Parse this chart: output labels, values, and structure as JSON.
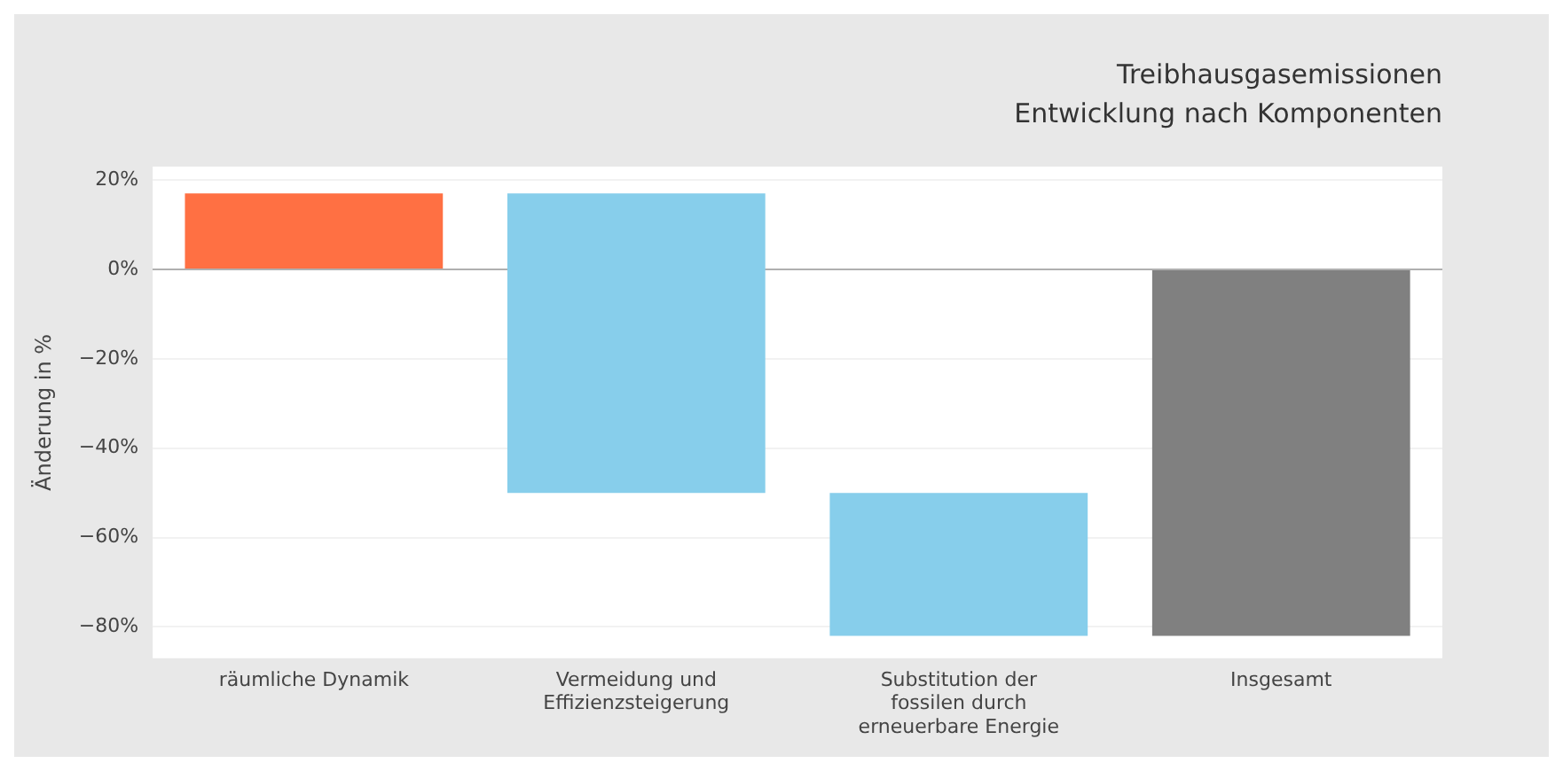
{
  "chart_data": {
    "type": "bar",
    "title": "Treibhausgasemissionen",
    "subtitle": "Entwicklung nach Komponenten",
    "ylabel": "Änderung in %",
    "categories": [
      "räumliche Dynamik",
      "Vermeidung und Effizienzsteigerung",
      "Substitution der fossilen durch erneuerbare Energie",
      "Insgesamt"
    ],
    "values": [
      17,
      -67,
      -32,
      -82
    ],
    "base": [
      0,
      17,
      -50,
      0
    ],
    "colors": [
      "#ff7043",
      "#87ceeb",
      "#87ceeb",
      "#808080"
    ],
    "ylim": [
      -87,
      23
    ],
    "yticks": [
      {
        "value": 20,
        "label": "20%"
      },
      {
        "value": 0,
        "label": "0%"
      },
      {
        "value": -20,
        "label": "−20%"
      },
      {
        "value": -40,
        "label": "−40%"
      },
      {
        "value": -60,
        "label": "−60%"
      },
      {
        "value": -80,
        "label": "−80%"
      }
    ],
    "grid": "y",
    "legend": false
  }
}
